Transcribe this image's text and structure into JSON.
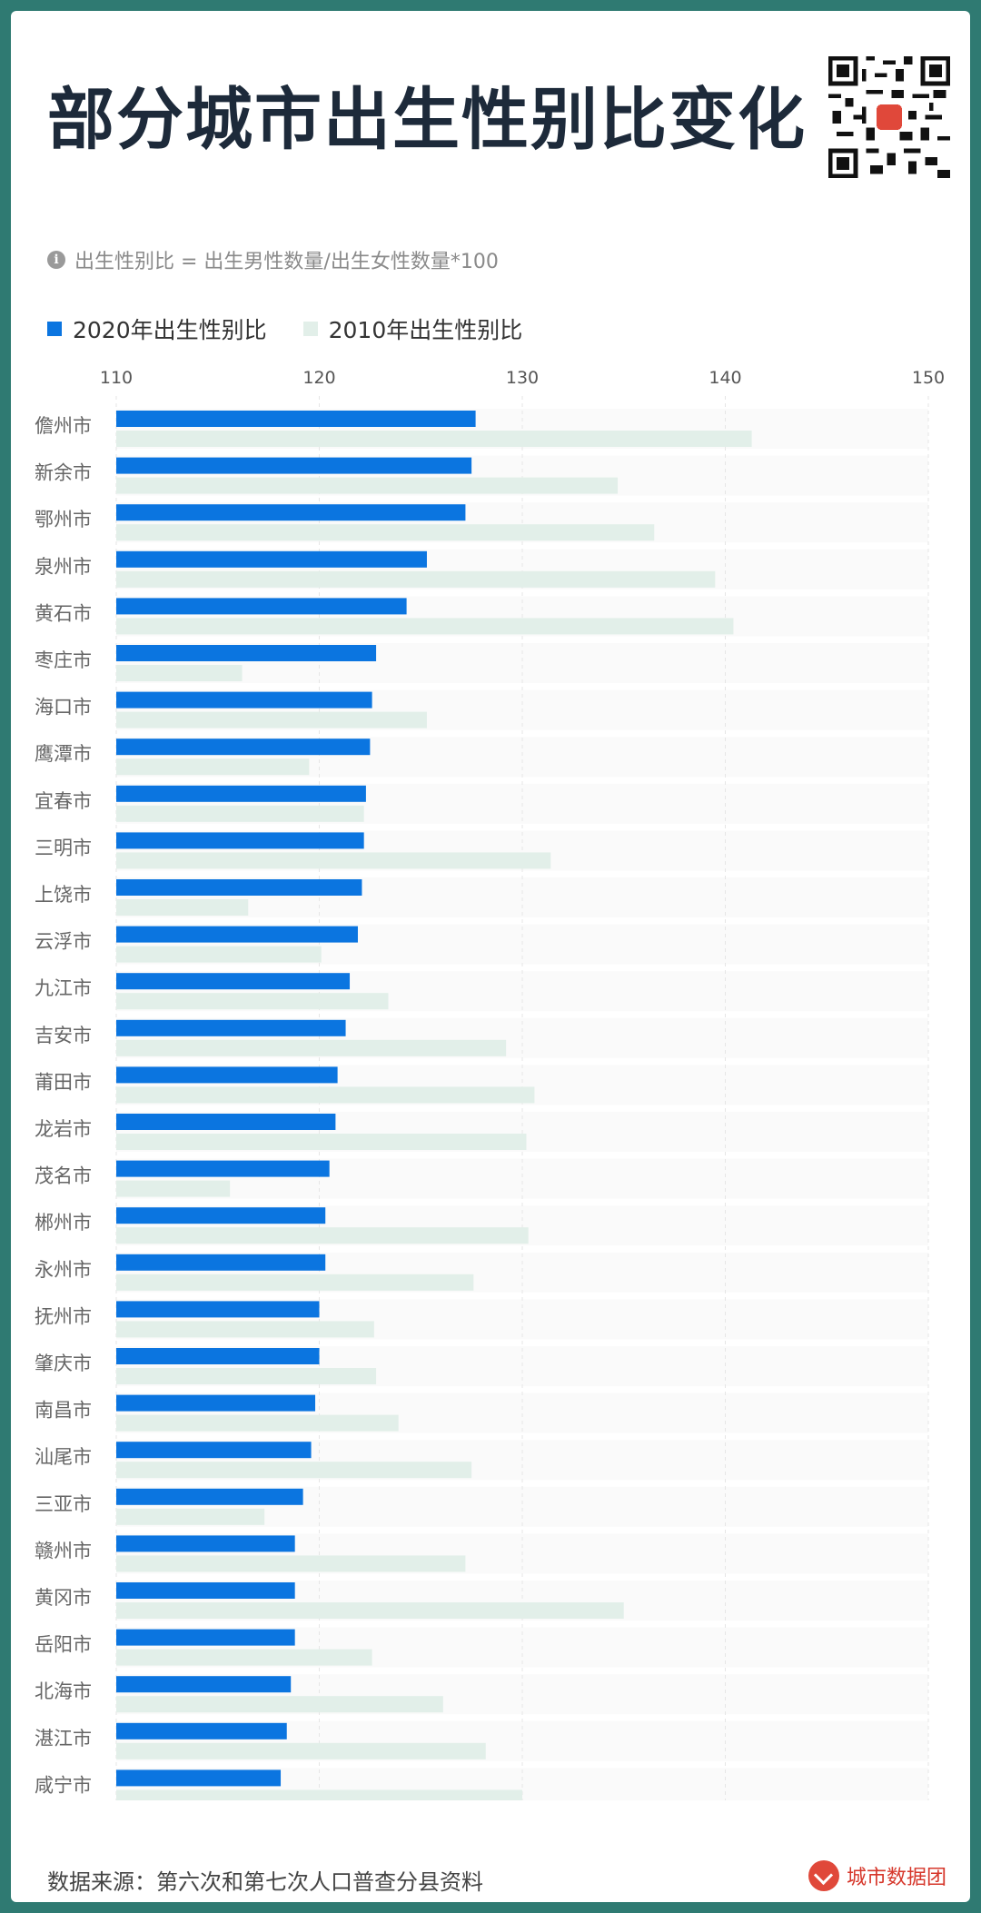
{
  "header": {
    "title": "部分城市出生性别比变化",
    "note": "出生性别比 = 出生男性数量/出生女性数量*100"
  },
  "legend": {
    "series_2020": "2020年出生性别比",
    "series_2010": "2010年出生性别比"
  },
  "footer": {
    "source": "数据来源：第六次和第七次人口普查分县资料",
    "brand": "城市数据团"
  },
  "colors": {
    "series_2020": "#0b75e0",
    "series_2010": "#e2efe9",
    "row_band": "#fafafa"
  },
  "chart_data": {
    "type": "bar",
    "orientation": "horizontal",
    "xlim": [
      110,
      150
    ],
    "xticks": [
      110,
      120,
      130,
      140,
      150
    ],
    "grid": true,
    "categories": [
      "儋州市",
      "新余市",
      "鄂州市",
      "泉州市",
      "黄石市",
      "枣庄市",
      "海口市",
      "鹰潭市",
      "宜春市",
      "三明市",
      "上饶市",
      "云浮市",
      "九江市",
      "吉安市",
      "莆田市",
      "龙岩市",
      "茂名市",
      "郴州市",
      "永州市",
      "抚州市",
      "肇庆市",
      "南昌市",
      "汕尾市",
      "三亚市",
      "赣州市",
      "黄冈市",
      "岳阳市",
      "北海市",
      "湛江市",
      "咸宁市"
    ],
    "series": [
      {
        "name": "2020年出生性别比",
        "values": [
          127.7,
          127.5,
          127.2,
          125.3,
          124.3,
          122.8,
          122.6,
          122.5,
          122.3,
          122.2,
          122.1,
          121.9,
          121.5,
          121.3,
          120.9,
          120.8,
          120.5,
          120.3,
          120.3,
          120.0,
          120.0,
          119.8,
          119.6,
          119.2,
          118.8,
          118.8,
          118.8,
          118.6,
          118.4,
          118.1
        ]
      },
      {
        "name": "2010年出生性别比",
        "values": [
          141.3,
          134.7,
          136.5,
          139.5,
          140.4,
          116.2,
          125.3,
          119.5,
          122.2,
          131.4,
          116.5,
          120.1,
          123.4,
          129.2,
          130.6,
          130.2,
          115.6,
          130.3,
          127.6,
          122.7,
          122.8,
          123.9,
          127.5,
          117.3,
          127.2,
          135.0,
          122.6,
          126.1,
          128.2,
          130.0
        ]
      }
    ]
  }
}
